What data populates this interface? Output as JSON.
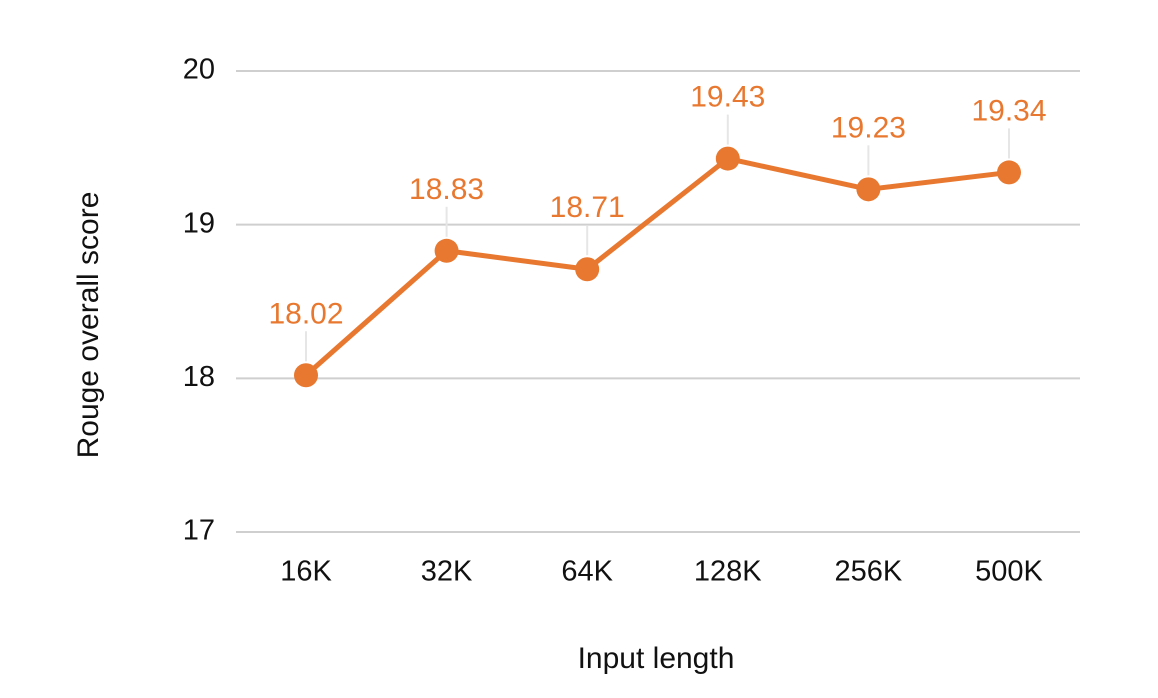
{
  "chart_data": {
    "type": "line",
    "categories": [
      "16K",
      "32K",
      "64K",
      "128K",
      "256K",
      "500K"
    ],
    "series": [
      {
        "values": [
          18.02,
          18.83,
          18.71,
          19.43,
          19.23,
          19.34
        ],
        "labels": [
          "18.02",
          "18.83",
          "18.71",
          "19.43",
          "19.23",
          "19.34"
        ],
        "color": "#e8782f"
      }
    ],
    "xlabel": "Input length",
    "ylabel": "Rouge overall score",
    "ylim": [
      17,
      20
    ],
    "yticks": [
      17,
      18,
      19,
      20
    ],
    "ytick_labels": [
      "17",
      "18",
      "19",
      "20"
    ],
    "grid": true,
    "gridline_color": "#cfcfcf",
    "legend": "none"
  }
}
